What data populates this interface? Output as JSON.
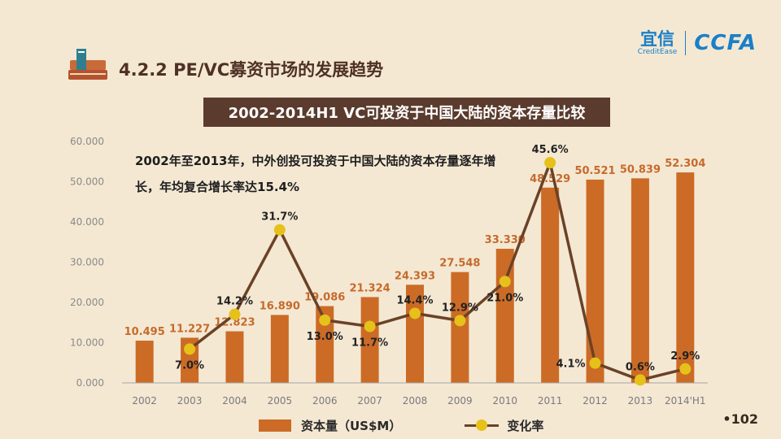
{
  "slide": {
    "title": "4.2.2 PE/VC募资市场的发展趋势",
    "page_number": "•102"
  },
  "brand": {
    "yixin_cn": "宜信",
    "yixin_en": "CreditEase",
    "ccfa": "CCFA"
  },
  "chart_banner": "2002-2014H1 VC可投资于中国大陆的资本存量比较",
  "annotation": "2002年至2013年，中外创投可投资于中国大陆的资本存量逐年增长，年均复合增长率达15.4%",
  "legend": {
    "bar_label": "资本量（US$M）",
    "line_label": "变化率"
  },
  "colors": {
    "bar": "#cc6b26",
    "bar_label": "#c66a2b",
    "line": "#6b4226",
    "marker": "#e6c11a",
    "banner": "#5a3b2d",
    "background": "#f4e8d3"
  },
  "chart_data": {
    "type": "bar",
    "title": "2002-2014H1 VC可投资于中国大陆的资本存量比较",
    "categories": [
      "2002",
      "2003",
      "2004",
      "2005",
      "2006",
      "2007",
      "2008",
      "2009",
      "2010",
      "2011",
      "2012",
      "2013",
      "2014'H1"
    ],
    "series": [
      {
        "name": "资本量（US$M）",
        "type": "bar",
        "axis": "left",
        "values": [
          10.495,
          11.227,
          12.823,
          16.89,
          19.086,
          21.324,
          24.393,
          27.548,
          33.33,
          48.529,
          50.521,
          50.839,
          52.304
        ],
        "labels": [
          "10.495",
          "11.227",
          "12.823",
          "16.890",
          "19.086",
          "21.324",
          "24.393",
          "27.548",
          "33.330",
          "48.529",
          "50.521",
          "50.839",
          "52.304"
        ]
      },
      {
        "name": "变化率",
        "type": "line",
        "axis": "secondary",
        "values": [
          null,
          7.0,
          14.2,
          31.7,
          13.0,
          11.7,
          14.4,
          12.9,
          21.0,
          45.6,
          4.1,
          0.6,
          2.9
        ],
        "labels": [
          "",
          "7.0%",
          "14.2%",
          "31.7%",
          "13.0%",
          "11.7%",
          "14.4%",
          "12.9%",
          "21.0%",
          "45.6%",
          "4.1%",
          "0.6%",
          "2.9%"
        ],
        "label_side": [
          "",
          "below",
          "above",
          "above",
          "below",
          "below",
          "above",
          "above",
          "below",
          "above",
          "left",
          "above",
          "above"
        ]
      }
    ],
    "ylim": [
      0,
      60
    ],
    "yticks": [
      0,
      10,
      20,
      30,
      40,
      50,
      60
    ],
    "ytick_labels": [
      "0.000",
      "10.000",
      "20.000",
      "30.000",
      "40.000",
      "50.000",
      "60.000"
    ],
    "secondary_ylim": [
      0,
      50
    ],
    "xlabel": "",
    "ylabel": "",
    "grid": false
  }
}
